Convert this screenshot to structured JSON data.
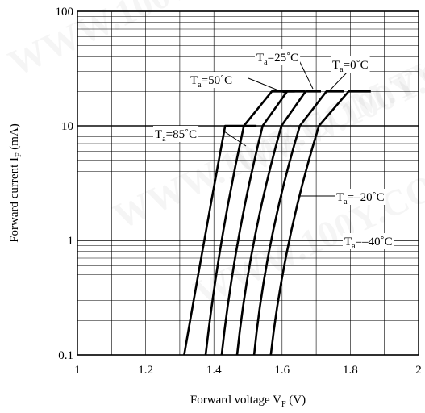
{
  "chart_data": {
    "type": "line",
    "title": "",
    "xlabel": {
      "main": "Forward voltage V",
      "sub": "F",
      "unit": " (V)"
    },
    "ylabel": {
      "main": "Forward  current I",
      "sub": "F",
      "unit": " (mA)"
    },
    "xlim": [
      1,
      2
    ],
    "ylim": [
      0.1,
      100
    ],
    "yscale": "log",
    "grid": true,
    "x_ticks": [
      {
        "value": 1,
        "label": "1"
      },
      {
        "value": 1.2,
        "label": "1.2"
      },
      {
        "value": 1.4,
        "label": "1.4"
      },
      {
        "value": 1.6,
        "label": "1.6"
      },
      {
        "value": 1.8,
        "label": "1.8"
      },
      {
        "value": 2,
        "label": "2"
      }
    ],
    "y_ticks": [
      {
        "value": 0.1,
        "label": "0.1"
      },
      {
        "value": 1,
        "label": "1"
      },
      {
        "value": 10,
        "label": "10"
      },
      {
        "value": 100,
        "label": "100"
      }
    ],
    "series": [
      {
        "name": "T_a=85°C",
        "label": {
          "main": "T",
          "sub": "a",
          "rest": "=85˚C"
        },
        "x": [
          1.313,
          1.372,
          1.433,
          1.525
        ],
        "y": [
          0.1,
          1,
          10,
          10
        ]
      },
      {
        "name": "T_a=50°C",
        "label": {
          "main": "T",
          "sub": "a",
          "rest": "=50˚C"
        },
        "x": [
          1.376,
          1.423,
          1.488,
          1.57,
          1.637
        ],
        "y": [
          0.1,
          1,
          10,
          20,
          20
        ]
      },
      {
        "name": "T_a=25°C",
        "label": {
          "main": "T",
          "sub": "a",
          "rest": "=25˚C"
        },
        "x": [
          1.423,
          1.471,
          1.543,
          1.615,
          1.667
        ],
        "y": [
          0.1,
          1,
          10,
          20,
          20
        ]
      },
      {
        "name": "T_a=0°C",
        "label": {
          "main": "T",
          "sub": "a",
          "rest": "=0˚C"
        },
        "x": [
          1.468,
          1.518,
          1.598,
          1.669,
          1.714
        ],
        "y": [
          0.1,
          1,
          10,
          20,
          20
        ]
      },
      {
        "name": "T_a=-20°C",
        "label": {
          "main": "T",
          "sub": "a",
          "rest": "=–20˚C"
        },
        "x": [
          1.518,
          1.568,
          1.652,
          1.73,
          1.781
        ],
        "y": [
          0.1,
          1,
          10,
          20,
          20
        ]
      },
      {
        "name": "T_a=-40°C",
        "label": {
          "main": "T",
          "sub": "a",
          "rest": "=–40˚C"
        },
        "x": [
          1.567,
          1.621,
          1.708,
          1.795,
          1.86
        ],
        "y": [
          0.1,
          1,
          10,
          20,
          20
        ]
      }
    ]
  }
}
